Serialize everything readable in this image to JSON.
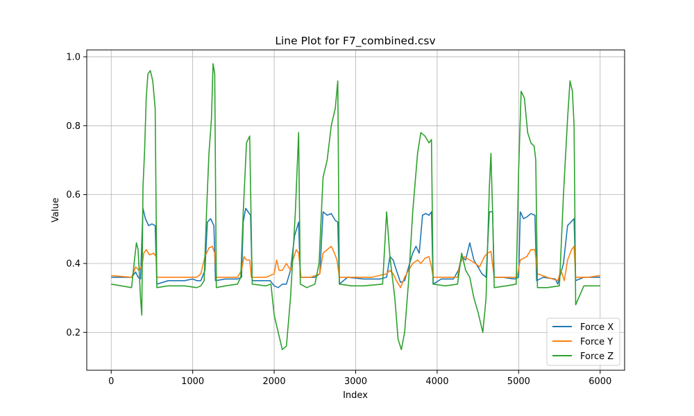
{
  "chart_data": {
    "type": "line",
    "title": "Line Plot for F7_combined.csv",
    "xlabel": "Index",
    "ylabel": "Value",
    "xlim": [
      -300,
      6300
    ],
    "ylim": [
      0.09,
      1.02
    ],
    "x_ticks": [
      0,
      1000,
      2000,
      3000,
      4000,
      5000,
      6000
    ],
    "y_ticks": [
      0.2,
      0.4,
      0.6,
      0.8,
      1.0
    ],
    "x_tick_labels": [
      "0",
      "1000",
      "2000",
      "3000",
      "4000",
      "5000",
      "6000"
    ],
    "y_tick_labels": [
      "0.2",
      "0.4",
      "0.6",
      "0.8",
      "1.0"
    ],
    "grid": true,
    "legend_position": "lower-right",
    "series": [
      {
        "name": "Force X",
        "color": "#1f77b4",
        "points": [
          [
            0,
            0.36
          ],
          [
            250,
            0.36
          ],
          [
            300,
            0.375
          ],
          [
            330,
            0.36
          ],
          [
            360,
            0.355
          ],
          [
            390,
            0.56
          ],
          [
            420,
            0.53
          ],
          [
            460,
            0.51
          ],
          [
            500,
            0.515
          ],
          [
            540,
            0.51
          ],
          [
            560,
            0.34
          ],
          [
            700,
            0.35
          ],
          [
            900,
            0.35
          ],
          [
            1000,
            0.355
          ],
          [
            1050,
            0.35
          ],
          [
            1100,
            0.35
          ],
          [
            1150,
            0.38
          ],
          [
            1180,
            0.52
          ],
          [
            1220,
            0.53
          ],
          [
            1260,
            0.51
          ],
          [
            1280,
            0.35
          ],
          [
            1400,
            0.355
          ],
          [
            1550,
            0.355
          ],
          [
            1600,
            0.36
          ],
          [
            1620,
            0.52
          ],
          [
            1650,
            0.56
          ],
          [
            1680,
            0.55
          ],
          [
            1710,
            0.54
          ],
          [
            1730,
            0.35
          ],
          [
            1900,
            0.35
          ],
          [
            1950,
            0.35
          ],
          [
            2000,
            0.335
          ],
          [
            2050,
            0.33
          ],
          [
            2100,
            0.34
          ],
          [
            2150,
            0.34
          ],
          [
            2200,
            0.38
          ],
          [
            2250,
            0.48
          ],
          [
            2300,
            0.52
          ],
          [
            2320,
            0.36
          ],
          [
            2400,
            0.36
          ],
          [
            2500,
            0.36
          ],
          [
            2560,
            0.37
          ],
          [
            2600,
            0.55
          ],
          [
            2650,
            0.54
          ],
          [
            2700,
            0.545
          ],
          [
            2750,
            0.525
          ],
          [
            2780,
            0.52
          ],
          [
            2800,
            0.34
          ],
          [
            2900,
            0.36
          ],
          [
            3100,
            0.355
          ],
          [
            3300,
            0.355
          ],
          [
            3380,
            0.36
          ],
          [
            3420,
            0.42
          ],
          [
            3460,
            0.41
          ],
          [
            3500,
            0.38
          ],
          [
            3550,
            0.345
          ],
          [
            3600,
            0.35
          ],
          [
            3650,
            0.39
          ],
          [
            3700,
            0.43
          ],
          [
            3740,
            0.45
          ],
          [
            3780,
            0.43
          ],
          [
            3820,
            0.54
          ],
          [
            3860,
            0.545
          ],
          [
            3900,
            0.54
          ],
          [
            3930,
            0.55
          ],
          [
            3950,
            0.34
          ],
          [
            4050,
            0.355
          ],
          [
            4200,
            0.355
          ],
          [
            4260,
            0.38
          ],
          [
            4300,
            0.42
          ],
          [
            4350,
            0.41
          ],
          [
            4400,
            0.46
          ],
          [
            4450,
            0.41
          ],
          [
            4500,
            0.39
          ],
          [
            4550,
            0.37
          ],
          [
            4600,
            0.36
          ],
          [
            4640,
            0.55
          ],
          [
            4680,
            0.55
          ],
          [
            4700,
            0.36
          ],
          [
            4800,
            0.36
          ],
          [
            4950,
            0.355
          ],
          [
            5000,
            0.36
          ],
          [
            5020,
            0.55
          ],
          [
            5060,
            0.53
          ],
          [
            5100,
            0.535
          ],
          [
            5150,
            0.545
          ],
          [
            5200,
            0.54
          ],
          [
            5220,
            0.35
          ],
          [
            5300,
            0.36
          ],
          [
            5450,
            0.355
          ],
          [
            5480,
            0.34
          ],
          [
            5550,
            0.4
          ],
          [
            5600,
            0.51
          ],
          [
            5640,
            0.52
          ],
          [
            5680,
            0.53
          ],
          [
            5700,
            0.35
          ],
          [
            5800,
            0.36
          ],
          [
            6000,
            0.36
          ]
        ]
      },
      {
        "name": "Force Y",
        "color": "#ff7f0e",
        "points": [
          [
            0,
            0.365
          ],
          [
            250,
            0.36
          ],
          [
            300,
            0.39
          ],
          [
            340,
            0.38
          ],
          [
            380,
            0.395
          ],
          [
            400,
            0.43
          ],
          [
            430,
            0.44
          ],
          [
            470,
            0.425
          ],
          [
            520,
            0.43
          ],
          [
            550,
            0.42
          ],
          [
            560,
            0.36
          ],
          [
            700,
            0.36
          ],
          [
            900,
            0.36
          ],
          [
            1050,
            0.36
          ],
          [
            1100,
            0.37
          ],
          [
            1150,
            0.42
          ],
          [
            1200,
            0.445
          ],
          [
            1240,
            0.45
          ],
          [
            1270,
            0.43
          ],
          [
            1290,
            0.36
          ],
          [
            1400,
            0.36
          ],
          [
            1550,
            0.36
          ],
          [
            1600,
            0.38
          ],
          [
            1630,
            0.42
          ],
          [
            1660,
            0.41
          ],
          [
            1700,
            0.41
          ],
          [
            1720,
            0.36
          ],
          [
            1900,
            0.36
          ],
          [
            2000,
            0.37
          ],
          [
            2030,
            0.41
          ],
          [
            2060,
            0.38
          ],
          [
            2100,
            0.38
          ],
          [
            2150,
            0.4
          ],
          [
            2200,
            0.38
          ],
          [
            2230,
            0.41
          ],
          [
            2270,
            0.44
          ],
          [
            2300,
            0.43
          ],
          [
            2330,
            0.36
          ],
          [
            2450,
            0.36
          ],
          [
            2560,
            0.37
          ],
          [
            2600,
            0.43
          ],
          [
            2650,
            0.44
          ],
          [
            2700,
            0.45
          ],
          [
            2740,
            0.43
          ],
          [
            2770,
            0.41
          ],
          [
            2800,
            0.36
          ],
          [
            3000,
            0.36
          ],
          [
            3200,
            0.36
          ],
          [
            3380,
            0.37
          ],
          [
            3420,
            0.38
          ],
          [
            3460,
            0.37
          ],
          [
            3500,
            0.35
          ],
          [
            3550,
            0.33
          ],
          [
            3600,
            0.36
          ],
          [
            3650,
            0.38
          ],
          [
            3700,
            0.4
          ],
          [
            3760,
            0.41
          ],
          [
            3800,
            0.4
          ],
          [
            3850,
            0.415
          ],
          [
            3900,
            0.42
          ],
          [
            3930,
            0.39
          ],
          [
            3950,
            0.36
          ],
          [
            4100,
            0.36
          ],
          [
            4250,
            0.36
          ],
          [
            4280,
            0.4
          ],
          [
            4330,
            0.42
          ],
          [
            4400,
            0.41
          ],
          [
            4470,
            0.4
          ],
          [
            4520,
            0.39
          ],
          [
            4580,
            0.42
          ],
          [
            4620,
            0.43
          ],
          [
            4660,
            0.435
          ],
          [
            4700,
            0.36
          ],
          [
            4850,
            0.36
          ],
          [
            4980,
            0.36
          ],
          [
            5020,
            0.41
          ],
          [
            5060,
            0.415
          ],
          [
            5100,
            0.42
          ],
          [
            5150,
            0.44
          ],
          [
            5200,
            0.44
          ],
          [
            5230,
            0.37
          ],
          [
            5350,
            0.36
          ],
          [
            5480,
            0.35
          ],
          [
            5520,
            0.38
          ],
          [
            5560,
            0.35
          ],
          [
            5600,
            0.41
          ],
          [
            5650,
            0.44
          ],
          [
            5680,
            0.45
          ],
          [
            5700,
            0.36
          ],
          [
            5850,
            0.36
          ],
          [
            6000,
            0.365
          ]
        ]
      },
      {
        "name": "Force Z",
        "color": "#2ca02c",
        "points": [
          [
            0,
            0.34
          ],
          [
            250,
            0.33
          ],
          [
            290,
            0.42
          ],
          [
            310,
            0.46
          ],
          [
            330,
            0.44
          ],
          [
            360,
            0.3
          ],
          [
            375,
            0.25
          ],
          [
            390,
            0.62
          ],
          [
            410,
            0.73
          ],
          [
            430,
            0.88
          ],
          [
            450,
            0.95
          ],
          [
            480,
            0.96
          ],
          [
            510,
            0.93
          ],
          [
            540,
            0.85
          ],
          [
            560,
            0.33
          ],
          [
            700,
            0.335
          ],
          [
            900,
            0.335
          ],
          [
            1050,
            0.33
          ],
          [
            1100,
            0.335
          ],
          [
            1140,
            0.35
          ],
          [
            1170,
            0.55
          ],
          [
            1200,
            0.72
          ],
          [
            1230,
            0.82
          ],
          [
            1250,
            0.98
          ],
          [
            1270,
            0.95
          ],
          [
            1290,
            0.33
          ],
          [
            1400,
            0.335
          ],
          [
            1550,
            0.34
          ],
          [
            1590,
            0.36
          ],
          [
            1620,
            0.55
          ],
          [
            1660,
            0.75
          ],
          [
            1700,
            0.77
          ],
          [
            1730,
            0.34
          ],
          [
            1900,
            0.335
          ],
          [
            1960,
            0.34
          ],
          [
            2000,
            0.25
          ],
          [
            2050,
            0.2
          ],
          [
            2100,
            0.15
          ],
          [
            2150,
            0.16
          ],
          [
            2200,
            0.3
          ],
          [
            2260,
            0.55
          ],
          [
            2300,
            0.78
          ],
          [
            2320,
            0.34
          ],
          [
            2400,
            0.33
          ],
          [
            2500,
            0.34
          ],
          [
            2550,
            0.4
          ],
          [
            2600,
            0.65
          ],
          [
            2650,
            0.7
          ],
          [
            2700,
            0.8
          ],
          [
            2750,
            0.85
          ],
          [
            2780,
            0.93
          ],
          [
            2800,
            0.34
          ],
          [
            2950,
            0.335
          ],
          [
            3100,
            0.335
          ],
          [
            3330,
            0.34
          ],
          [
            3380,
            0.55
          ],
          [
            3420,
            0.42
          ],
          [
            3480,
            0.3
          ],
          [
            3520,
            0.18
          ],
          [
            3560,
            0.15
          ],
          [
            3600,
            0.2
          ],
          [
            3650,
            0.35
          ],
          [
            3700,
            0.55
          ],
          [
            3760,
            0.72
          ],
          [
            3800,
            0.78
          ],
          [
            3850,
            0.77
          ],
          [
            3900,
            0.75
          ],
          [
            3930,
            0.76
          ],
          [
            3950,
            0.34
          ],
          [
            4100,
            0.335
          ],
          [
            4250,
            0.34
          ],
          [
            4300,
            0.43
          ],
          [
            4350,
            0.38
          ],
          [
            4400,
            0.36
          ],
          [
            4450,
            0.3
          ],
          [
            4500,
            0.26
          ],
          [
            4560,
            0.2
          ],
          [
            4600,
            0.3
          ],
          [
            4640,
            0.62
          ],
          [
            4660,
            0.72
          ],
          [
            4680,
            0.55
          ],
          [
            4700,
            0.33
          ],
          [
            4850,
            0.335
          ],
          [
            4970,
            0.34
          ],
          [
            5000,
            0.67
          ],
          [
            5030,
            0.9
          ],
          [
            5070,
            0.88
          ],
          [
            5110,
            0.78
          ],
          [
            5150,
            0.75
          ],
          [
            5190,
            0.74
          ],
          [
            5210,
            0.7
          ],
          [
            5230,
            0.33
          ],
          [
            5350,
            0.33
          ],
          [
            5500,
            0.335
          ],
          [
            5550,
            0.6
          ],
          [
            5600,
            0.82
          ],
          [
            5630,
            0.93
          ],
          [
            5660,
            0.9
          ],
          [
            5680,
            0.8
          ],
          [
            5700,
            0.28
          ],
          [
            5800,
            0.335
          ],
          [
            6000,
            0.335
          ]
        ]
      }
    ]
  }
}
